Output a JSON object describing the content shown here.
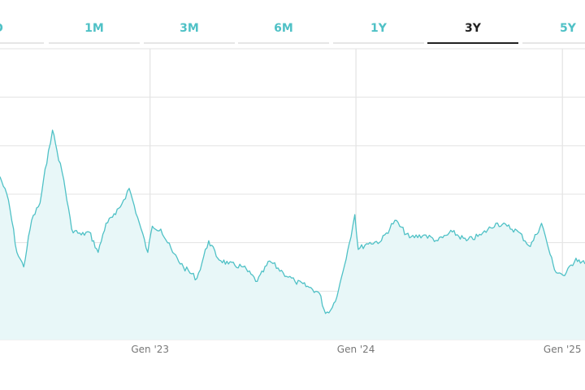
{
  "tabs": [
    {
      "label": "D",
      "active": false
    },
    {
      "label": "1M",
      "active": false
    },
    {
      "label": "3M",
      "active": false
    },
    {
      "label": "6M",
      "active": false
    },
    {
      "label": "1Y",
      "active": false
    },
    {
      "label": "3Y",
      "active": true
    },
    {
      "label": "5Y",
      "active": false
    }
  ],
  "colors": {
    "line": "#4fc1c6",
    "fill": "#e8f7f8",
    "grid": "#e3e3e3",
    "tab_text": "#4fc1c6",
    "tab_active": "#222222",
    "axis_text": "#777777"
  },
  "chart_data": {
    "type": "area",
    "title": "",
    "xlabel": "",
    "ylabel": "",
    "x_tick_labels": [
      "Gen '23",
      "Gen '24",
      "Gen '25"
    ],
    "x_tick_dates": [
      "2023-01-01",
      "2024-01-01",
      "2025-01-01"
    ],
    "x_range": [
      "2022-04-10",
      "2025-02-10"
    ],
    "grid": true,
    "legend": "none",
    "series": [
      {
        "points": [
          [
            "2022-04-10",
            56
          ],
          [
            "2022-04-25",
            48
          ],
          [
            "2022-05-10",
            30
          ],
          [
            "2022-05-22",
            25
          ],
          [
            "2022-06-05",
            41
          ],
          [
            "2022-06-20",
            47
          ],
          [
            "2022-07-05",
            65
          ],
          [
            "2022-07-12",
            72
          ],
          [
            "2022-07-20",
            65
          ],
          [
            "2022-08-01",
            55
          ],
          [
            "2022-08-15",
            38
          ],
          [
            "2022-09-01",
            36
          ],
          [
            "2022-09-15",
            37
          ],
          [
            "2022-10-01",
            30
          ],
          [
            "2022-10-15",
            40
          ],
          [
            "2022-11-01",
            43
          ],
          [
            "2022-11-15",
            48
          ],
          [
            "2022-11-25",
            52
          ],
          [
            "2022-12-10",
            42
          ],
          [
            "2022-12-28",
            30
          ],
          [
            "2023-01-05",
            39
          ],
          [
            "2023-01-20",
            38
          ],
          [
            "2023-02-10",
            30
          ],
          [
            "2023-03-01",
            25
          ],
          [
            "2023-03-25",
            21
          ],
          [
            "2023-04-15",
            34
          ],
          [
            "2023-05-01",
            28
          ],
          [
            "2023-05-20",
            26
          ],
          [
            "2023-06-15",
            25
          ],
          [
            "2023-07-10",
            20
          ],
          [
            "2023-08-01",
            27
          ],
          [
            "2023-08-25",
            23
          ],
          [
            "2023-09-15",
            20
          ],
          [
            "2023-10-10",
            18
          ],
          [
            "2023-10-28",
            16
          ],
          [
            "2023-11-08",
            9
          ],
          [
            "2023-11-20",
            11
          ],
          [
            "2023-12-01",
            17
          ],
          [
            "2023-12-20",
            33
          ],
          [
            "2023-12-30",
            43
          ],
          [
            "2024-01-05",
            31
          ],
          [
            "2024-01-20",
            33
          ],
          [
            "2024-02-15",
            34
          ],
          [
            "2024-03-10",
            41
          ],
          [
            "2024-04-05",
            35
          ],
          [
            "2024-05-01",
            36
          ],
          [
            "2024-05-25",
            34
          ],
          [
            "2024-06-20",
            37
          ],
          [
            "2024-07-15",
            34
          ],
          [
            "2024-08-10",
            36
          ],
          [
            "2024-09-05",
            40
          ],
          [
            "2024-09-25",
            39
          ],
          [
            "2024-10-15",
            37
          ],
          [
            "2024-11-05",
            32
          ],
          [
            "2024-11-25",
            40
          ],
          [
            "2024-12-05",
            33
          ],
          [
            "2024-12-18",
            24
          ],
          [
            "2025-01-05",
            22
          ],
          [
            "2025-01-25",
            28
          ],
          [
            "2025-02-10",
            26
          ]
        ]
      }
    ]
  }
}
